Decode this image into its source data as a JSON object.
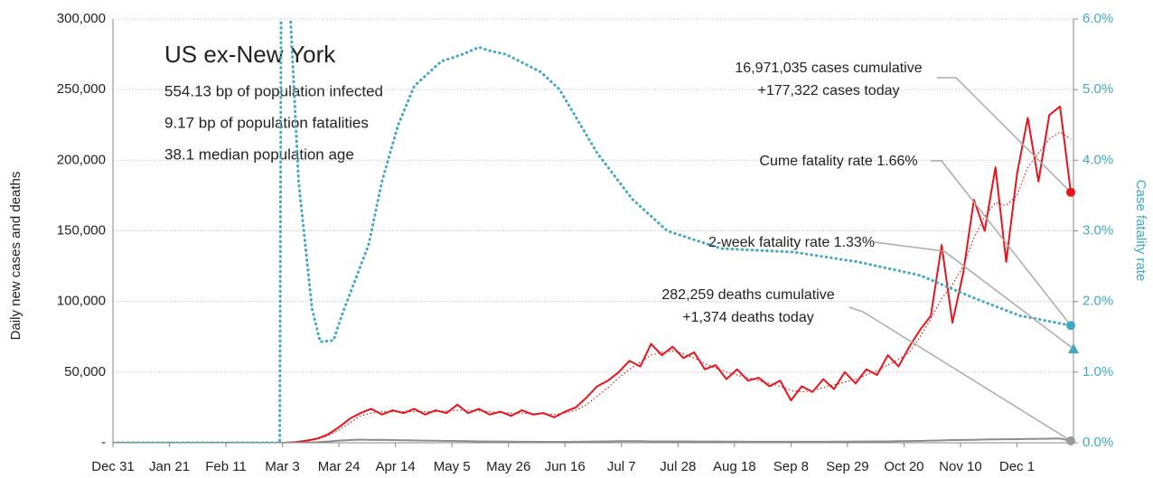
{
  "chart_data": {
    "type": "line",
    "title": "US ex-New York",
    "info": [
      "554.13 bp of population infected",
      "9.17 bp of population fatalities",
      "38.1 median population age"
    ],
    "ylabel": "Daily new cases and deaths",
    "y2label": "Case fatality rate",
    "xlim": [
      0,
      357
    ],
    "xticks": [
      {
        "value": 0,
        "label": "Dec 31"
      },
      {
        "value": 21,
        "label": "Jan 21"
      },
      {
        "value": 42,
        "label": "Feb 11"
      },
      {
        "value": 63,
        "label": "Mar 3"
      },
      {
        "value": 84,
        "label": "Mar 24"
      },
      {
        "value": 105,
        "label": "Apr 14"
      },
      {
        "value": 126,
        "label": "May 5"
      },
      {
        "value": 147,
        "label": "May 26"
      },
      {
        "value": 168,
        "label": "Jun 16"
      },
      {
        "value": 189,
        "label": "Jul 7"
      },
      {
        "value": 210,
        "label": "Jul 28"
      },
      {
        "value": 231,
        "label": "Aug 18"
      },
      {
        "value": 252,
        "label": "Sep 8"
      },
      {
        "value": 273,
        "label": "Sep 29"
      },
      {
        "value": 294,
        "label": "Oct 20"
      },
      {
        "value": 315,
        "label": "Nov 10"
      },
      {
        "value": 336,
        "label": "Dec 1"
      }
    ],
    "ylim": [
      0,
      300000
    ],
    "yticks": [
      {
        "value": 0,
        "label": "-"
      },
      {
        "value": 50000,
        "label": "50,000"
      },
      {
        "value": 100000,
        "label": "100,000"
      },
      {
        "value": 150000,
        "label": "150,000"
      },
      {
        "value": 200000,
        "label": "200,000"
      },
      {
        "value": 250000,
        "label": "250,000"
      },
      {
        "value": 300000,
        "label": "300,000"
      }
    ],
    "y2lim": [
      0,
      6
    ],
    "y2ticks": [
      {
        "value": 0,
        "label": "0.0%"
      },
      {
        "value": 1,
        "label": "1.0%"
      },
      {
        "value": 2,
        "label": "2.0%"
      },
      {
        "value": 3,
        "label": "3.0%"
      },
      {
        "value": 4,
        "label": "4.0%"
      },
      {
        "value": 5,
        "label": "5.0%"
      },
      {
        "value": 6,
        "label": "6.0%"
      }
    ],
    "grid": true,
    "x": [
      0,
      30,
      60,
      64,
      68,
      72,
      76,
      80,
      84,
      88,
      92,
      96,
      100,
      104,
      108,
      112,
      116,
      120,
      124,
      128,
      132,
      136,
      140,
      144,
      148,
      152,
      156,
      160,
      164,
      168,
      172,
      176,
      180,
      184,
      188,
      192,
      196,
      200,
      204,
      208,
      212,
      216,
      220,
      224,
      228,
      232,
      236,
      240,
      244,
      248,
      252,
      256,
      260,
      264,
      268,
      272,
      276,
      280,
      284,
      288,
      292,
      296,
      300,
      304,
      308,
      312,
      316,
      320,
      324,
      328,
      332,
      336,
      340,
      344,
      348,
      352,
      356
    ],
    "series": [
      {
        "color": "#e8141b",
        "style": "solid",
        "values": [
          0,
          0,
          0,
          100,
          500,
          1500,
          3000,
          6000,
          11000,
          17000,
          21000,
          24000,
          20000,
          23000,
          21000,
          24000,
          20000,
          23000,
          21000,
          27000,
          21000,
          24000,
          20000,
          22000,
          19000,
          23000,
          20000,
          21000,
          18000,
          22000,
          25000,
          32000,
          40000,
          44000,
          50000,
          58000,
          54000,
          70000,
          62000,
          68000,
          60000,
          64000,
          52000,
          55000,
          45000,
          52000,
          44000,
          46000,
          40000,
          44000,
          30000,
          40000,
          36000,
          45000,
          38000,
          50000,
          42000,
          52000,
          48000,
          62000,
          54000,
          68000,
          80000,
          90000,
          140000,
          85000,
          120000,
          172000,
          150000,
          195000,
          128000,
          190000,
          230000,
          185000,
          232000,
          238000,
          177322
        ]
      },
      {
        "color": "#e8141b",
        "style": "dotted",
        "values": [
          0,
          0,
          0,
          50,
          400,
          1200,
          2500,
          5000,
          9000,
          14000,
          19000,
          21000,
          22000,
          22000,
          22000,
          22000,
          22000,
          22000,
          22500,
          23000,
          23000,
          22500,
          22000,
          21500,
          21000,
          21000,
          20500,
          20500,
          20000,
          21000,
          23000,
          27000,
          33000,
          39000,
          46000,
          52000,
          57000,
          62000,
          64000,
          65000,
          63000,
          60000,
          56000,
          53000,
          50000,
          48000,
          46000,
          44000,
          42000,
          40000,
          37000,
          36000,
          37000,
          39000,
          41000,
          43000,
          45000,
          48000,
          51000,
          55000,
          59000,
          64000,
          75000,
          88000,
          102000,
          112000,
          125000,
          145000,
          160000,
          170000,
          168000,
          175000,
          195000,
          205000,
          215000,
          220000,
          215000
        ]
      },
      {
        "color": "#8c8c8c",
        "style": "solid",
        "values": [
          0,
          0,
          0,
          20,
          50,
          150,
          400,
          900,
          1500,
          1900,
          2200,
          2000,
          2100,
          1900,
          1800,
          1700,
          1500,
          1400,
          1300,
          1200,
          1100,
          1000,
          900,
          850,
          800,
          750,
          700,
          650,
          600,
          650,
          700,
          800,
          900,
          1000,
          1100,
          1100,
          1100,
          1000,
          1000,
          1000,
          950,
          900,
          900,
          850,
          800,
          800,
          750,
          700,
          750,
          750,
          700,
          750,
          750,
          750,
          800,
          800,
          850,
          900,
          950,
          1000,
          1100,
          1200,
          1300,
          1500,
          1700,
          1900,
          2000,
          2100,
          2300,
          2400,
          2500,
          2600,
          2700,
          2800,
          2900,
          3000,
          1374
        ]
      },
      {
        "color": "#3fa9bf",
        "style": "dotted-heavy",
        "axis": "y2",
        "x": [
          0,
          62,
          63,
          66,
          69,
          74,
          77,
          82,
          85,
          90,
          95,
          100,
          106,
          112,
          122,
          130,
          136,
          140,
          146,
          159,
          166,
          180,
          193,
          206,
          226,
          253,
          277,
          300,
          320,
          337,
          356
        ],
        "values": [
          0,
          0,
          12,
          6,
          3.7,
          1.9,
          1.43,
          1.45,
          1.8,
          2.3,
          2.8,
          3.7,
          4.5,
          5.05,
          5.4,
          5.5,
          5.6,
          5.55,
          5.5,
          5.25,
          5.0,
          4.1,
          3.45,
          3.0,
          2.75,
          2.7,
          2.56,
          2.37,
          2.05,
          1.8,
          1.66
        ]
      }
    ],
    "two_week_fatality_rate": 1.33,
    "annotations": [
      "16,971,035 cases cumulative",
      "+177,322 cases today",
      "Cume fatality rate 1.66%",
      "2-week fatality rate 1.33%",
      "282,259 deaths cumulative",
      "+1,374 deaths today"
    ]
  }
}
